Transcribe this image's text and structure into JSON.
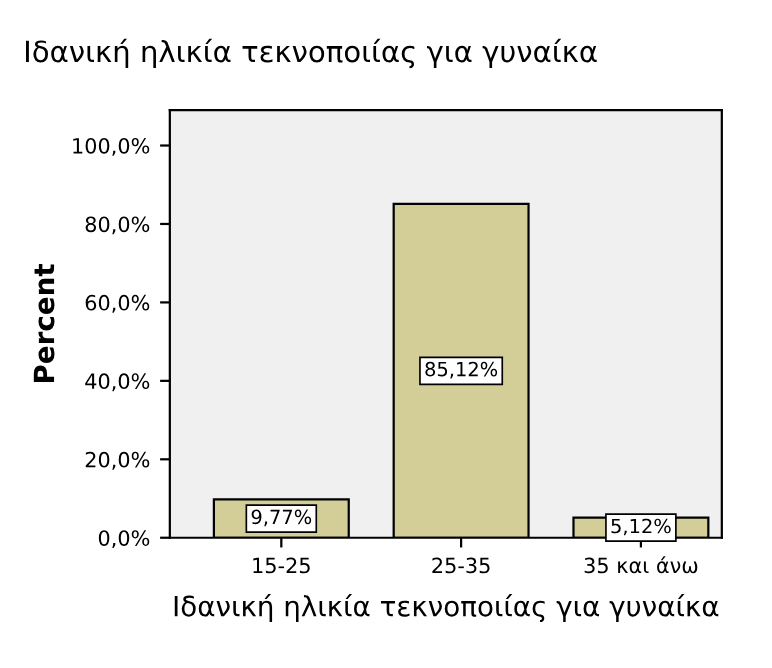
{
  "chart_data": {
    "type": "bar",
    "title": "Ιδανική ηλικία τεκνοποιίας για γυναίκα",
    "xlabel": "Ιδανική ηλικία τεκνοποιίας για γυναίκα",
    "ylabel": "Percent",
    "categories": [
      "15-25",
      "25-35",
      "35 και άνω"
    ],
    "values": [
      9.77,
      85.12,
      5.12
    ],
    "color": "#d3ce97",
    "value_labels": [
      "9,77%",
      "85,12%",
      "5,12%"
    ],
    "ylim": [
      0,
      109
    ],
    "yticks": [
      {
        "value": 0,
        "label": "0,0%"
      },
      {
        "value": 20,
        "label": "20,0%"
      },
      {
        "value": 40,
        "label": "40,0%"
      },
      {
        "value": 60,
        "label": "60,0%"
      },
      {
        "value": 80,
        "label": "80,0%"
      },
      {
        "value": 100,
        "label": "100,0%"
      }
    ],
    "grid": false,
    "legend": false
  }
}
